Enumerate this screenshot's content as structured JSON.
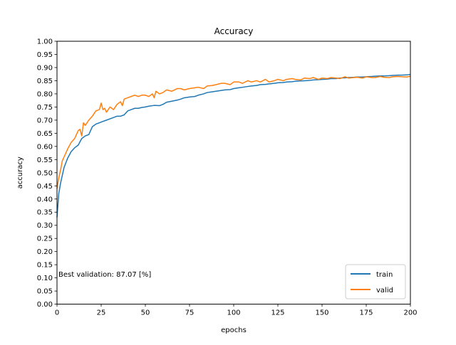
{
  "chart_data": {
    "type": "line",
    "title": "Accuracy",
    "xlabel": "epochs",
    "ylabel": "accuracy",
    "xlim": [
      0,
      200
    ],
    "ylim": [
      0.0,
      1.0
    ],
    "xticks": [
      0,
      25,
      50,
      75,
      100,
      125,
      150,
      175,
      200
    ],
    "xtick_labels": [
      "0",
      "25",
      "50",
      "75",
      "100",
      "125",
      "150",
      "175",
      "200"
    ],
    "yticks": [
      0.0,
      0.05,
      0.1,
      0.15,
      0.2,
      0.25,
      0.3,
      0.35,
      0.4,
      0.45,
      0.5,
      0.55,
      0.6,
      0.65,
      0.7,
      0.75,
      0.8,
      0.85,
      0.9,
      0.95,
      1.0
    ],
    "ytick_labels": [
      "0.00",
      "0.05",
      "0.10",
      "0.15",
      "0.20",
      "0.25",
      "0.30",
      "0.35",
      "0.40",
      "0.45",
      "0.50",
      "0.55",
      "0.60",
      "0.65",
      "0.70",
      "0.75",
      "0.80",
      "0.85",
      "0.90",
      "0.95",
      "1.00"
    ],
    "grid": false,
    "legend_position": "lower-right",
    "annotation": "Best validation: 87.07 [%]",
    "series": [
      {
        "name": "train",
        "color": "#1f77b4",
        "x": [
          0,
          1,
          2,
          4,
          6,
          8,
          10,
          12,
          14,
          16,
          18,
          20,
          22,
          24,
          26,
          28,
          30,
          32,
          34,
          36,
          38,
          40,
          42,
          44,
          46,
          48,
          50,
          52,
          55,
          58,
          60,
          62,
          65,
          68,
          70,
          72,
          75,
          78,
          80,
          83,
          85,
          88,
          90,
          93,
          95,
          98,
          100,
          103,
          105,
          108,
          110,
          113,
          115,
          118,
          120,
          123,
          125,
          128,
          130,
          133,
          135,
          138,
          140,
          143,
          145,
          148,
          150,
          153,
          155,
          158,
          160,
          163,
          165,
          168,
          170,
          173,
          175,
          178,
          180,
          183,
          185,
          188,
          190,
          193,
          195,
          198,
          200
        ],
        "y": [
          0.33,
          0.42,
          0.46,
          0.52,
          0.555,
          0.58,
          0.595,
          0.605,
          0.63,
          0.64,
          0.645,
          0.675,
          0.685,
          0.69,
          0.695,
          0.7,
          0.705,
          0.71,
          0.715,
          0.715,
          0.72,
          0.735,
          0.74,
          0.745,
          0.745,
          0.748,
          0.75,
          0.753,
          0.756,
          0.755,
          0.76,
          0.768,
          0.772,
          0.776,
          0.78,
          0.785,
          0.788,
          0.79,
          0.795,
          0.8,
          0.805,
          0.808,
          0.81,
          0.813,
          0.815,
          0.816,
          0.82,
          0.823,
          0.825,
          0.828,
          0.83,
          0.832,
          0.835,
          0.836,
          0.838,
          0.84,
          0.842,
          0.843,
          0.845,
          0.846,
          0.848,
          0.849,
          0.85,
          0.851,
          0.853,
          0.854,
          0.855,
          0.856,
          0.858,
          0.858,
          0.86,
          0.861,
          0.862,
          0.863,
          0.864,
          0.864,
          0.865,
          0.866,
          0.867,
          0.868,
          0.868,
          0.869,
          0.87,
          0.871,
          0.871,
          0.872,
          0.874
        ]
      },
      {
        "name": "valid",
        "color": "#ff7f0e",
        "x": [
          0,
          1,
          2,
          3,
          4,
          6,
          8,
          10,
          12,
          13,
          14,
          15,
          16,
          18,
          20,
          22,
          24,
          25,
          26,
          27,
          28,
          30,
          32,
          34,
          36,
          37,
          38,
          40,
          42,
          44,
          46,
          48,
          50,
          52,
          54,
          55,
          56,
          58,
          60,
          62,
          65,
          68,
          70,
          72,
          75,
          78,
          80,
          83,
          85,
          88,
          90,
          93,
          95,
          98,
          100,
          103,
          105,
          108,
          110,
          113,
          115,
          118,
          120,
          123,
          125,
          128,
          130,
          133,
          135,
          138,
          140,
          143,
          145,
          148,
          150,
          153,
          155,
          158,
          160,
          163,
          165,
          168,
          170,
          173,
          175,
          178,
          180,
          183,
          185,
          188,
          190,
          193,
          195,
          198,
          200
        ],
        "y": [
          0.44,
          0.48,
          0.51,
          0.545,
          0.56,
          0.59,
          0.615,
          0.63,
          0.66,
          0.665,
          0.64,
          0.69,
          0.68,
          0.7,
          0.715,
          0.735,
          0.74,
          0.765,
          0.74,
          0.745,
          0.73,
          0.75,
          0.74,
          0.76,
          0.77,
          0.755,
          0.78,
          0.785,
          0.79,
          0.795,
          0.79,
          0.795,
          0.795,
          0.79,
          0.8,
          0.785,
          0.81,
          0.8,
          0.805,
          0.815,
          0.81,
          0.82,
          0.82,
          0.815,
          0.82,
          0.823,
          0.825,
          0.82,
          0.83,
          0.832,
          0.835,
          0.84,
          0.84,
          0.835,
          0.845,
          0.845,
          0.84,
          0.85,
          0.845,
          0.85,
          0.845,
          0.855,
          0.845,
          0.85,
          0.855,
          0.85,
          0.855,
          0.858,
          0.855,
          0.853,
          0.86,
          0.858,
          0.862,
          0.855,
          0.86,
          0.858,
          0.862,
          0.86,
          0.858,
          0.865,
          0.86,
          0.862,
          0.863,
          0.86,
          0.865,
          0.862,
          0.862,
          0.866,
          0.863,
          0.862,
          0.865,
          0.866,
          0.865,
          0.864,
          0.867
        ]
      }
    ]
  }
}
